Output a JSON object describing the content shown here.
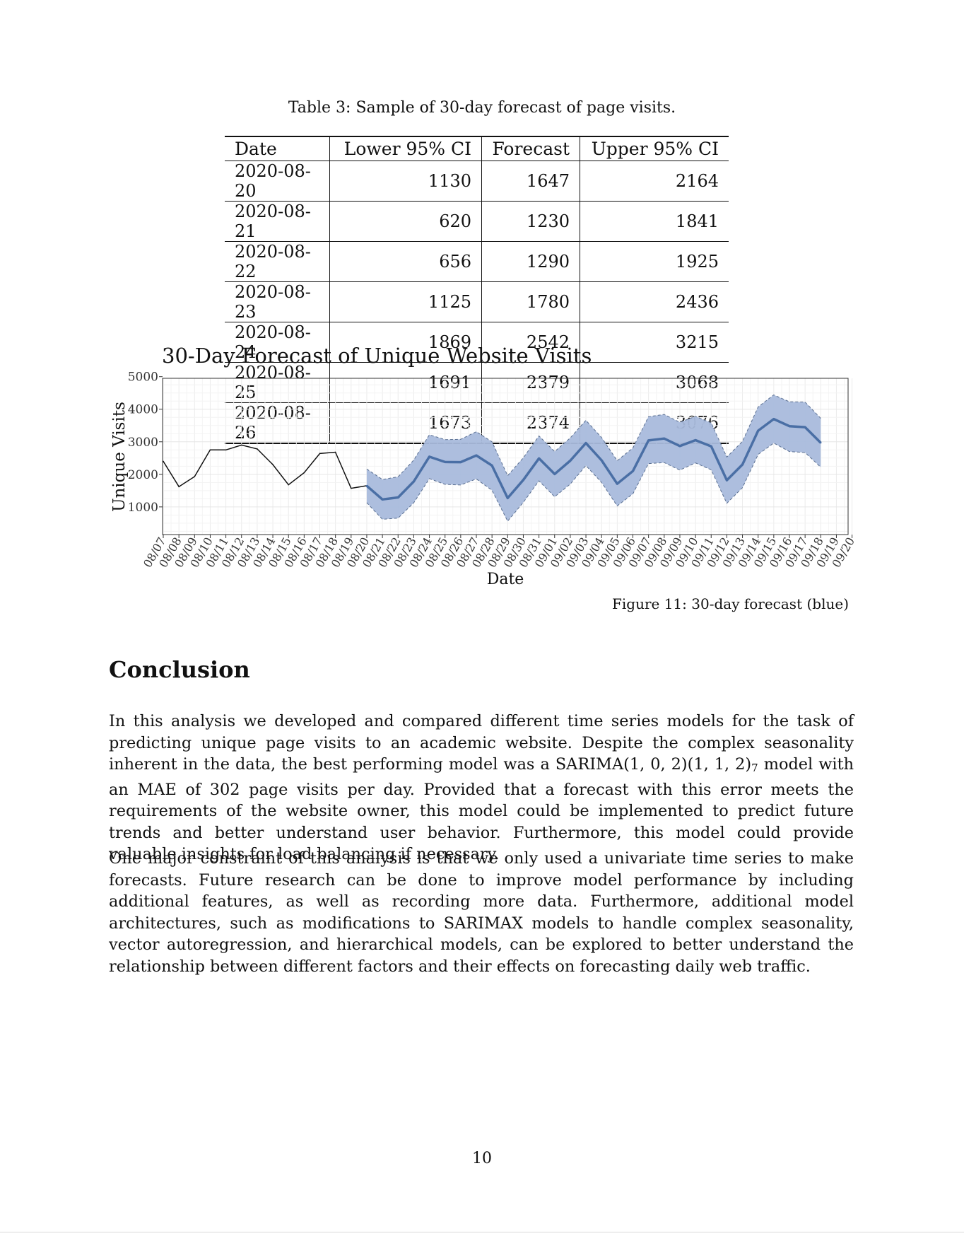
{
  "table": {
    "caption": "Table 3: Sample of 30-day forecast of page visits.",
    "headers": [
      "Date",
      "Lower 95% CI",
      "Forecast",
      "Upper 95% CI"
    ],
    "rows": [
      [
        "2020-08-20",
        "1130",
        "1647",
        "2164"
      ],
      [
        "2020-08-21",
        "620",
        "1230",
        "1841"
      ],
      [
        "2020-08-22",
        "656",
        "1290",
        "1925"
      ],
      [
        "2020-08-23",
        "1125",
        "1780",
        "2436"
      ],
      [
        "2020-08-24",
        "1869",
        "2542",
        "3215"
      ],
      [
        "2020-08-25",
        "1691",
        "2379",
        "3068"
      ],
      [
        "2020-08-26",
        "1673",
        "2374",
        "3076"
      ]
    ]
  },
  "figure": {
    "caption": "Figure 11: 30-day forecast (blue)"
  },
  "chart_data": {
    "type": "line",
    "title": "30-Day Forecast of Unique Website Visits",
    "xlabel": "Date",
    "ylabel": "Unique Visits",
    "ylim": [
      150,
      4950
    ],
    "yticks": [
      1000,
      2000,
      3000,
      4000,
      5000
    ],
    "grid": true,
    "x": [
      "08/07",
      "08/08",
      "08/09",
      "08/10",
      "08/11",
      "08/12",
      "08/13",
      "08/14",
      "08/15",
      "08/16",
      "08/17",
      "08/18",
      "08/19",
      "08/20",
      "08/21",
      "08/22",
      "08/23",
      "08/24",
      "08/25",
      "08/26",
      "08/27",
      "08/28",
      "08/29",
      "08/30",
      "08/31",
      "09/01",
      "09/02",
      "09/03",
      "09/04",
      "09/05",
      "09/06",
      "09/07",
      "09/08",
      "09/09",
      "09/10",
      "09/11",
      "09/12",
      "09/13",
      "09/14",
      "09/15",
      "09/16",
      "09/17",
      "09/18",
      "09/19",
      "09/20"
    ],
    "observed": {
      "color": "#111111",
      "x": [
        "08/07",
        "08/08",
        "08/09",
        "08/10",
        "08/11",
        "08/12",
        "08/13",
        "08/14",
        "08/15",
        "08/16",
        "08/17",
        "08/18",
        "08/19",
        "08/20"
      ],
      "values": [
        2400,
        1620,
        1930,
        2750,
        2750,
        2900,
        2780,
        2300,
        1680,
        2050,
        2640,
        2680,
        1570,
        1650
      ]
    },
    "forecast": {
      "color": "#4a6fa5",
      "band_color": "#a9bbdc",
      "x": [
        "08/20",
        "08/21",
        "08/22",
        "08/23",
        "08/24",
        "08/25",
        "08/26",
        "08/27",
        "08/28",
        "08/29",
        "08/30",
        "08/31",
        "09/01",
        "09/02",
        "09/03",
        "09/04",
        "09/05",
        "09/06",
        "09/07",
        "09/08",
        "09/09",
        "09/10",
        "09/11",
        "09/12",
        "09/13",
        "09/14",
        "09/15",
        "09/16",
        "09/17",
        "09/18"
      ],
      "values": [
        1647,
        1230,
        1290,
        1780,
        2542,
        2379,
        2374,
        2580,
        2270,
        1270,
        1830,
        2490,
        2010,
        2420,
        2960,
        2430,
        1710,
        2100,
        3040,
        3100,
        2870,
        3050,
        2860,
        1820,
        2300,
        3340,
        3700,
        3480,
        3450,
        2970
      ],
      "lower": [
        1130,
        620,
        656,
        1125,
        1869,
        1691,
        1673,
        1860,
        1510,
        560,
        1140,
        1800,
        1310,
        1700,
        2270,
        1750,
        1030,
        1400,
        2330,
        2360,
        2130,
        2350,
        2140,
        1110,
        1590,
        2610,
        2960,
        2700,
        2670,
        2220
      ],
      "upper": [
        2164,
        1841,
        1925,
        2436,
        3215,
        3068,
        3076,
        3310,
        3000,
        1960,
        2510,
        3180,
        2700,
        3120,
        3660,
        3130,
        2420,
        2810,
        3770,
        3840,
        3600,
        3780,
        3580,
        2530,
        3010,
        4070,
        4440,
        4230,
        4220,
        3720
      ]
    }
  },
  "conclusion": {
    "heading": "Conclusion",
    "p1_before": "In this analysis we developed and compared different time series models for the task of predicting unique page visits to an academic website. Despite the complex seasonality inherent in the data, the best performing model was a SARIMA(1, 0, 2)(1, 1, 2)",
    "p1_sub": "7",
    "p1_after": " model with an MAE of 302 page visits per day. Provided that a forecast with this error meets the requirements of the website owner, this model could be implemented to predict future trends and better understand user behavior. Furthermore, this model could provide valuable insights for load balancing if necessary.",
    "p2": "One major constraint of this analysis is that we only used a univariate time series to make forecasts. Future research can be done to improve model performance by including additional features, as well as recording more data. Furthermore, additional model architectures, such as modifications to SARIMAX models to handle complex seasonality, vector autoregression, and hierarchical models, can be explored to better understand the relationship between different factors and their effects on forecasting daily web traffic."
  },
  "page_number": "10"
}
